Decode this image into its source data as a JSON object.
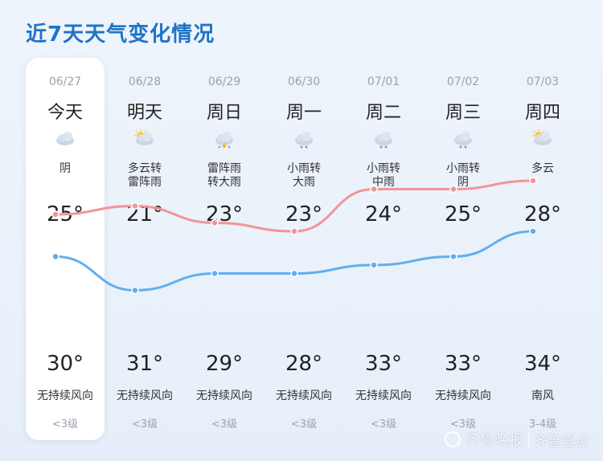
{
  "title": "近7天天气变化情况",
  "days": [
    {
      "date": "06/27",
      "day": "今天",
      "icon": "cloudy-icon",
      "cond": "阴",
      "hi": "25°",
      "lo": "30°",
      "wind": "无持续风向",
      "level": "<3级",
      "hi_val": 25,
      "lo_val": 30
    },
    {
      "date": "06/28",
      "day": "明天",
      "icon": "partly-cloudy-icon",
      "cond": "多云转\n雷阵雨",
      "hi": "21°",
      "lo": "31°",
      "wind": "无持续风向",
      "level": "<3级",
      "hi_val": 21,
      "lo_val": 31
    },
    {
      "date": "06/29",
      "day": "周日",
      "icon": "thunderstorm-icon",
      "cond": "雷阵雨\n转大雨",
      "hi": "23°",
      "lo": "29°",
      "wind": "无持续风向",
      "level": "<3级",
      "hi_val": 23,
      "lo_val": 29
    },
    {
      "date": "06/30",
      "day": "周一",
      "icon": "rain-icon",
      "cond": "小雨转\n大雨",
      "hi": "23°",
      "lo": "28°",
      "wind": "无持续风向",
      "level": "<3级",
      "hi_val": 23,
      "lo_val": 28
    },
    {
      "date": "07/01",
      "day": "周二",
      "icon": "rain-icon",
      "cond": "小雨转\n中雨",
      "hi": "24°",
      "lo": "33°",
      "wind": "无持续风向",
      "level": "<3级",
      "hi_val": 24,
      "lo_val": 33
    },
    {
      "date": "07/02",
      "day": "周三",
      "icon": "rain-icon",
      "cond": "小雨转\n阴",
      "hi": "25°",
      "lo": "33°",
      "wind": "无持续风向",
      "level": "<3级",
      "hi_val": 25,
      "lo_val": 33
    },
    {
      "date": "07/03",
      "day": "周四",
      "icon": "partly-cloudy-icon",
      "cond": "多云",
      "hi": "28°",
      "lo": "34°",
      "wind": "南风",
      "level": "3-4级",
      "hi_val": 28,
      "lo_val": 34
    }
  ],
  "colors": {
    "upper_line": "#f2949a",
    "lower_line": "#62aeee",
    "title": "#1e73c8"
  },
  "watermark": {
    "text": "齐鲁晚报",
    "brand": "齐鲁壹点"
  }
}
